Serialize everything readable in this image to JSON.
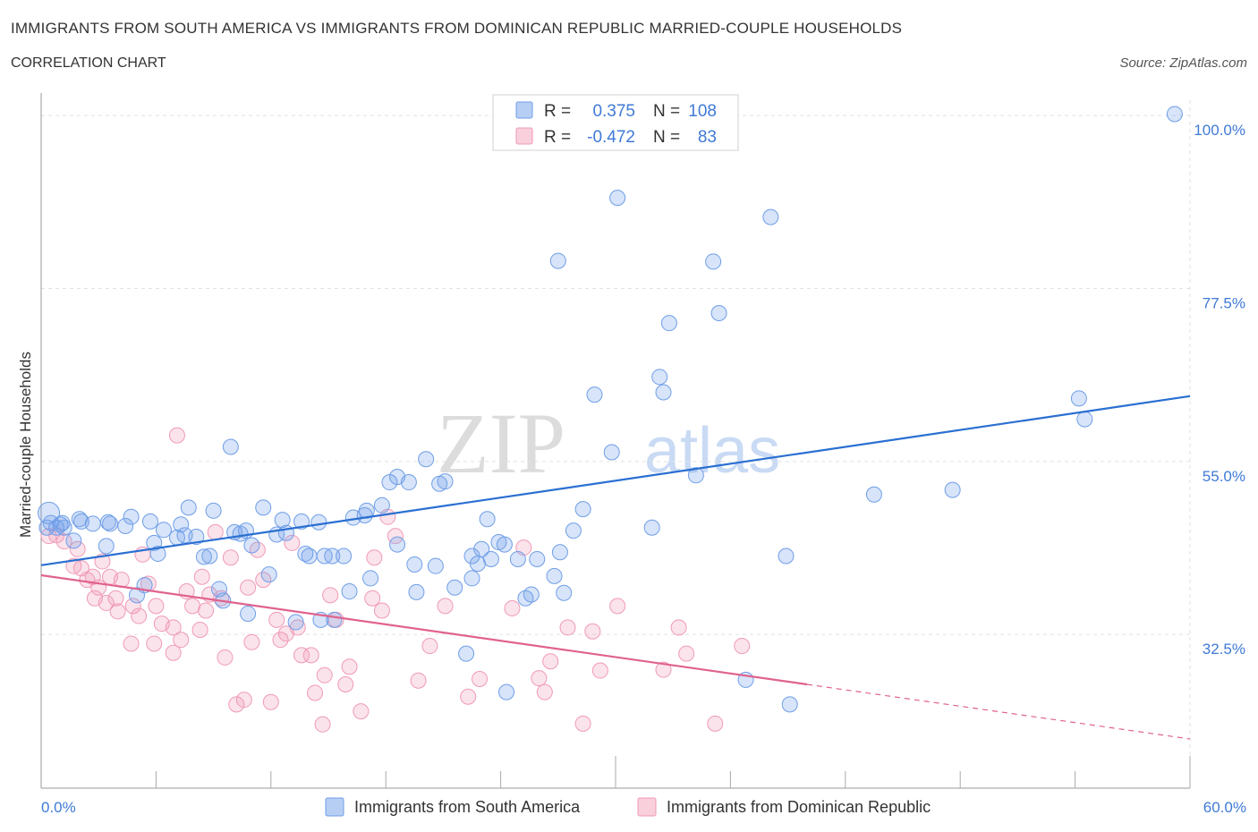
{
  "header": {
    "title": "IMMIGRANTS FROM SOUTH AMERICA VS IMMIGRANTS FROM DOMINICAN REPUBLIC MARRIED-COUPLE HOUSEHOLDS",
    "subtitle": "CORRELATION CHART",
    "source": "Source: ZipAtlas.com"
  },
  "watermark": {
    "left": "ZIP",
    "right": "atlas"
  },
  "legend": {
    "rows": [
      {
        "r_label": "R =",
        "r_value": "0.375",
        "n_label": "N =",
        "n_value": "108"
      },
      {
        "r_label": "R =",
        "r_value": "-0.472",
        "n_label": "N =",
        "n_value": "83"
      }
    ]
  },
  "chart_data": {
    "type": "scatter",
    "title": "IMMIGRANTS FROM SOUTH AMERICA VS IMMIGRANTS FROM DOMINICAN REPUBLIC MARRIED-COUPLE HOUSEHOLDS",
    "xlabel": "",
    "ylabel": "Married-couple Households",
    "xlim": [
      0,
      60
    ],
    "ylim": [
      12.5,
      102
    ],
    "x_tick_labels": [
      "0.0%",
      "60.0%"
    ],
    "y_ticks": [
      32.5,
      55.0,
      77.5,
      100.0
    ],
    "y_tick_labels": [
      "32.5%",
      "55.0%",
      "77.5%",
      "100.0%"
    ],
    "grid": true,
    "colors": {
      "blue": "#6f9ee8",
      "blue_line": "#2a6fd1",
      "pink": "#f09ab6",
      "pink_line": "#e0628e",
      "tick_label": "#3f7ad6"
    },
    "series": [
      {
        "name": "Immigrants from South America",
        "color": "#6f9ee8",
        "R": 0.375,
        "N": 108,
        "trend": {
          "x": [
            0,
            60
          ],
          "y": [
            41.5,
            63.5
          ]
        },
        "points": [
          [
            0.4,
            48.3
          ],
          [
            0.3,
            46.4
          ],
          [
            0.5,
            47.0
          ],
          [
            0.8,
            46.4
          ],
          [
            1.0,
            46.8
          ],
          [
            1.2,
            46.4
          ],
          [
            1.1,
            47.0
          ],
          [
            1.7,
            44.7
          ],
          [
            2.0,
            47.5
          ],
          [
            2.1,
            47.2
          ],
          [
            2.7,
            46.9
          ],
          [
            3.4,
            44.0
          ],
          [
            3.5,
            47.1
          ],
          [
            3.6,
            46.9
          ],
          [
            4.4,
            46.6
          ],
          [
            4.7,
            47.8
          ],
          [
            5.0,
            37.6
          ],
          [
            5.4,
            38.9
          ],
          [
            5.7,
            47.2
          ],
          [
            5.9,
            44.4
          ],
          [
            6.1,
            43.0
          ],
          [
            6.4,
            46.1
          ],
          [
            7.1,
            45.1
          ],
          [
            7.3,
            46.8
          ],
          [
            7.5,
            45.4
          ],
          [
            7.7,
            49.0
          ],
          [
            8.1,
            45.2
          ],
          [
            8.5,
            42.6
          ],
          [
            8.8,
            42.7
          ],
          [
            9.0,
            48.6
          ],
          [
            9.3,
            38.4
          ],
          [
            9.5,
            36.9
          ],
          [
            9.9,
            56.9
          ],
          [
            10.1,
            45.8
          ],
          [
            10.4,
            45.6
          ],
          [
            10.7,
            46.0
          ],
          [
            10.8,
            35.2
          ],
          [
            11.0,
            44.1
          ],
          [
            11.6,
            49.0
          ],
          [
            11.9,
            40.3
          ],
          [
            12.3,
            45.5
          ],
          [
            12.6,
            47.4
          ],
          [
            12.8,
            45.7
          ],
          [
            13.3,
            34.1
          ],
          [
            13.6,
            47.2
          ],
          [
            13.8,
            43.0
          ],
          [
            14.0,
            42.7
          ],
          [
            14.5,
            47.1
          ],
          [
            14.6,
            34.4
          ],
          [
            14.8,
            42.7
          ],
          [
            15.2,
            42.7
          ],
          [
            15.3,
            34.4
          ],
          [
            15.8,
            42.7
          ],
          [
            16.1,
            38.1
          ],
          [
            16.3,
            47.7
          ],
          [
            16.9,
            48.0
          ],
          [
            17.0,
            48.6
          ],
          [
            17.2,
            39.8
          ],
          [
            17.8,
            49.3
          ],
          [
            18.2,
            52.3
          ],
          [
            18.6,
            53.0
          ],
          [
            18.6,
            44.2
          ],
          [
            19.2,
            52.3
          ],
          [
            19.5,
            41.6
          ],
          [
            19.6,
            38.0
          ],
          [
            20.1,
            55.3
          ],
          [
            20.6,
            41.4
          ],
          [
            20.8,
            52.1
          ],
          [
            21.1,
            52.4
          ],
          [
            21.6,
            38.6
          ],
          [
            22.2,
            30.0
          ],
          [
            22.5,
            42.7
          ],
          [
            22.5,
            39.8
          ],
          [
            22.8,
            41.7
          ],
          [
            23.0,
            43.6
          ],
          [
            23.3,
            47.5
          ],
          [
            23.5,
            42.3
          ],
          [
            23.9,
            44.5
          ],
          [
            24.2,
            44.2
          ],
          [
            24.3,
            25.0
          ],
          [
            24.9,
            42.3
          ],
          [
            25.3,
            37.2
          ],
          [
            25.6,
            37.7
          ],
          [
            25.9,
            42.3
          ],
          [
            26.8,
            40.1
          ],
          [
            27.0,
            81.1
          ],
          [
            27.1,
            43.2
          ],
          [
            27.3,
            37.9
          ],
          [
            27.8,
            46.0
          ],
          [
            28.3,
            48.8
          ],
          [
            28.9,
            63.7
          ],
          [
            29.8,
            56.2
          ],
          [
            30.1,
            89.3
          ],
          [
            31.9,
            46.4
          ],
          [
            32.3,
            66.0
          ],
          [
            32.5,
            64.0
          ],
          [
            32.8,
            73.0
          ],
          [
            34.2,
            53.2
          ],
          [
            35.1,
            81.0
          ],
          [
            35.4,
            74.3
          ],
          [
            36.8,
            26.6
          ],
          [
            38.1,
            86.8
          ],
          [
            38.9,
            42.7
          ],
          [
            39.1,
            23.4
          ],
          [
            43.5,
            50.7
          ],
          [
            47.6,
            51.3
          ],
          [
            54.2,
            63.2
          ],
          [
            54.5,
            60.5
          ],
          [
            59.2,
            100.2
          ]
        ]
      },
      {
        "name": "Immigrants from Dominican Republic",
        "color": "#f09ab6",
        "R": -0.472,
        "N": 83,
        "trend": {
          "x": [
            0,
            40
          ],
          "y": [
            40.2,
            26.0
          ]
        },
        "trend_dashed": {
          "x": [
            40,
            60
          ],
          "y": [
            26.0,
            18.9
          ]
        },
        "points": [
          [
            0.4,
            45.3
          ],
          [
            0.8,
            45.4
          ],
          [
            1.2,
            44.6
          ],
          [
            1.7,
            41.4
          ],
          [
            1.9,
            43.6
          ],
          [
            2.1,
            41.1
          ],
          [
            2.4,
            39.6
          ],
          [
            2.7,
            40.0
          ],
          [
            2.8,
            37.2
          ],
          [
            3.0,
            38.6
          ],
          [
            3.2,
            42.0
          ],
          [
            3.4,
            36.6
          ],
          [
            3.6,
            40.0
          ],
          [
            3.9,
            37.2
          ],
          [
            4.0,
            35.5
          ],
          [
            4.2,
            39.6
          ],
          [
            4.7,
            31.3
          ],
          [
            4.8,
            36.2
          ],
          [
            5.1,
            34.9
          ],
          [
            5.3,
            42.9
          ],
          [
            5.6,
            39.1
          ],
          [
            5.9,
            31.3
          ],
          [
            6.0,
            36.2
          ],
          [
            6.3,
            33.9
          ],
          [
            6.9,
            33.4
          ],
          [
            6.9,
            30.1
          ],
          [
            7.1,
            58.4
          ],
          [
            7.3,
            31.8
          ],
          [
            7.6,
            38.1
          ],
          [
            7.9,
            36.2
          ],
          [
            8.3,
            33.1
          ],
          [
            8.4,
            40.0
          ],
          [
            8.6,
            35.6
          ],
          [
            8.8,
            37.7
          ],
          [
            9.1,
            45.8
          ],
          [
            9.4,
            37.2
          ],
          [
            9.6,
            29.5
          ],
          [
            9.9,
            42.5
          ],
          [
            10.2,
            23.4
          ],
          [
            10.6,
            24.0
          ],
          [
            10.8,
            38.6
          ],
          [
            11.0,
            31.5
          ],
          [
            11.3,
            43.5
          ],
          [
            11.6,
            39.6
          ],
          [
            12.0,
            23.7
          ],
          [
            12.3,
            34.4
          ],
          [
            12.5,
            31.8
          ],
          [
            12.8,
            32.6
          ],
          [
            13.1,
            44.4
          ],
          [
            13.4,
            33.4
          ],
          [
            13.6,
            29.8
          ],
          [
            14.1,
            29.8
          ],
          [
            14.3,
            24.9
          ],
          [
            14.7,
            20.8
          ],
          [
            14.8,
            27.2
          ],
          [
            15.1,
            37.6
          ],
          [
            15.4,
            34.4
          ],
          [
            15.9,
            26.0
          ],
          [
            16.1,
            28.3
          ],
          [
            16.7,
            22.5
          ],
          [
            17.3,
            37.2
          ],
          [
            17.4,
            42.5
          ],
          [
            17.8,
            35.6
          ],
          [
            18.1,
            47.8
          ],
          [
            18.5,
            45.3
          ],
          [
            19.7,
            26.5
          ],
          [
            20.3,
            31.0
          ],
          [
            21.1,
            36.2
          ],
          [
            22.3,
            24.4
          ],
          [
            22.9,
            26.7
          ],
          [
            24.6,
            35.9
          ],
          [
            25.2,
            43.8
          ],
          [
            26.0,
            26.8
          ],
          [
            26.3,
            25.0
          ],
          [
            26.6,
            29.0
          ],
          [
            27.5,
            33.4
          ],
          [
            28.3,
            20.9
          ],
          [
            28.8,
            32.9
          ],
          [
            29.2,
            27.8
          ],
          [
            30.1,
            36.2
          ],
          [
            32.5,
            27.9
          ],
          [
            33.3,
            33.4
          ],
          [
            33.7,
            30.0
          ],
          [
            35.2,
            20.9
          ],
          [
            36.6,
            31.0
          ]
        ]
      }
    ]
  },
  "bottom_legend": {
    "items": [
      {
        "label": "Immigrants from South America",
        "color": "#6f9ee8"
      },
      {
        "label": "Immigrants from Dominican Republic",
        "color": "#f09ab6"
      }
    ]
  }
}
